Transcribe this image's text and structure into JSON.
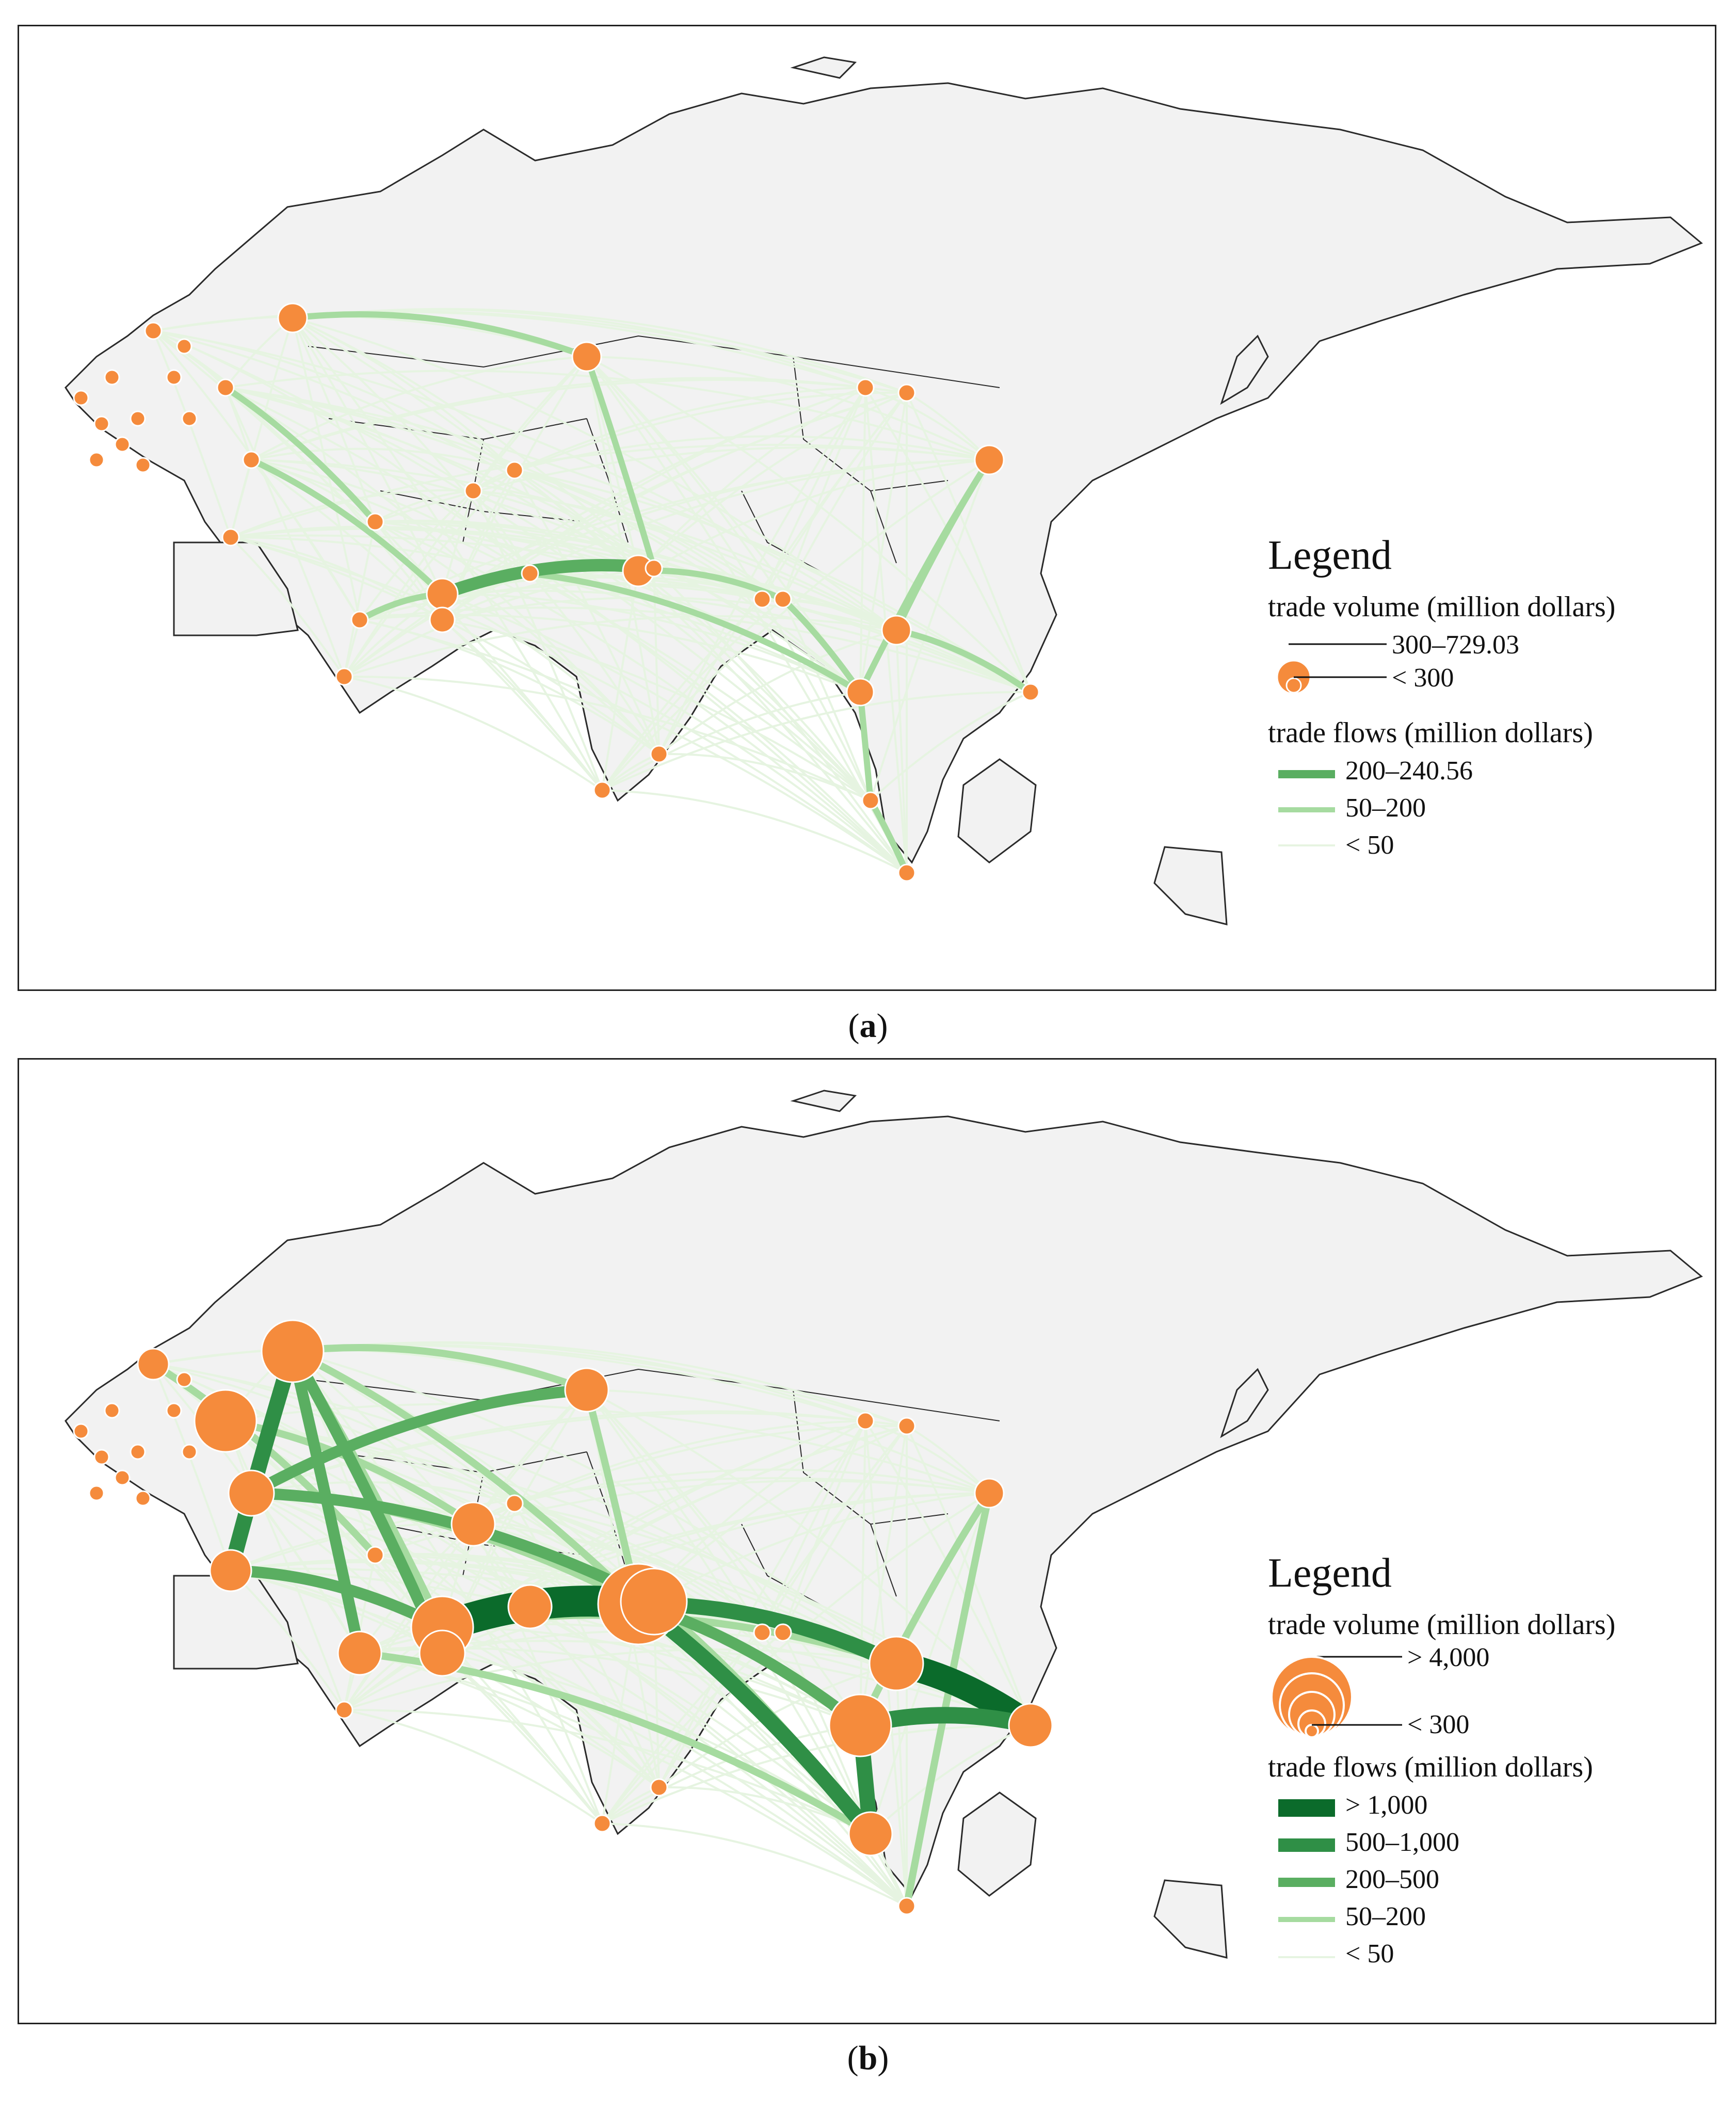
{
  "colors": {
    "land": "#f2f2f2",
    "coast": "#2a2a2a",
    "node": "#f58b3c",
    "node_edge": "#ffffff",
    "flow_lt50": "#e6f4e1",
    "flow_50_200": "#a6dba0",
    "flow_200_500": "#5aae61",
    "flow_500_1000": "#2f8f46",
    "flow_gt1000": "#0b6b2b"
  },
  "panel_a": {
    "caption_letter": "a",
    "legend": {
      "title": "Legend",
      "volume_title": "trade volume (million dollars)",
      "volume_classes": [
        "300–729.03",
        "< 300"
      ],
      "flows_title": "trade flows (million dollars)",
      "flow_classes": [
        {
          "label": "200–240.56",
          "color": "#5aae61"
        },
        {
          "label": "50–200",
          "color": "#a6dba0"
        },
        {
          "label": "< 50",
          "color": "#e6f4e1"
        }
      ]
    }
  },
  "panel_b": {
    "caption_letter": "b",
    "legend": {
      "title": "Legend",
      "volume_title": "trade volume (million dollars)",
      "volume_classes": [
        "> 4,000",
        "< 300"
      ],
      "flows_title": "trade flows (million dollars)",
      "flow_classes": [
        {
          "label": "> 1,000",
          "color": "#0b6b2b"
        },
        {
          "label": "500–1,000",
          "color": "#2f8f46"
        },
        {
          "label": "200–500",
          "color": "#5aae61"
        },
        {
          "label": "50–200",
          "color": "#a6dba0"
        },
        {
          "label": "< 50",
          "color": "#e6f4e1"
        }
      ]
    }
  }
}
